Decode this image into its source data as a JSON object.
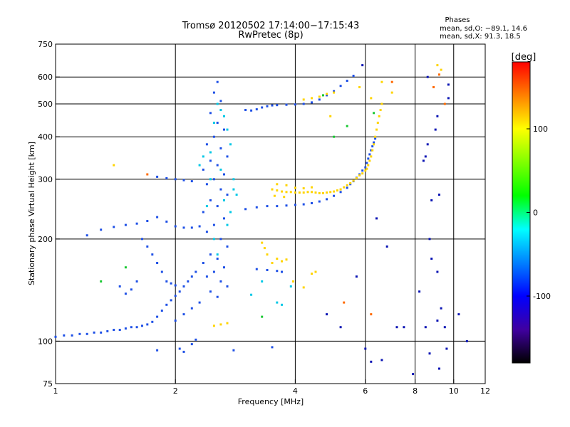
{
  "chart_data": {
    "type": "scatter",
    "title": "Tromsø 20120502 17:14:00−17:15:43",
    "subtitle": "RwPretec (8p)",
    "xlabel": "Frequency [MHz]",
    "ylabel": "Stationary phase Virtual Height [km]",
    "x_scale": "log",
    "y_scale": "log",
    "xlim": [
      1,
      12
    ],
    "ylim": [
      75,
      750
    ],
    "x_ticks": [
      1,
      2,
      4,
      6,
      8,
      10,
      12
    ],
    "y_ticks": [
      75,
      100,
      200,
      300,
      400,
      500,
      600,
      750
    ],
    "x_grid": [
      2,
      4,
      6,
      8,
      10
    ],
    "y_grid": [
      100,
      200,
      300,
      400,
      500,
      600
    ],
    "grid": true,
    "phase_stats": {
      "heading": "Phases",
      "line1": "mean, sd,O: −89.1, 14.6",
      "line2": "mean, sd,X:  91.3, 18.5"
    },
    "colorbar": {
      "label": "[deg]",
      "range": [
        -180,
        180
      ],
      "ticks": [
        100,
        0,
        -100
      ],
      "colors": [
        "#ff0000",
        "#ff8000",
        "#ffff00",
        "#80ff00",
        "#00ff00",
        "#00ffff",
        "#0080ff",
        "#0000ff",
        "#4000a0",
        "#000000"
      ]
    },
    "series": [
      {
        "points": [
          [
            1.0,
            103
          ],
          [
            1.05,
            104
          ],
          [
            1.1,
            104
          ],
          [
            1.15,
            105
          ],
          [
            1.2,
            105
          ],
          [
            1.25,
            106
          ],
          [
            1.3,
            106
          ],
          [
            1.35,
            107
          ],
          [
            1.4,
            108
          ],
          [
            1.45,
            108
          ],
          [
            1.5,
            109
          ],
          [
            1.55,
            110
          ],
          [
            1.6,
            110
          ],
          [
            1.65,
            111
          ],
          [
            1.7,
            112
          ],
          [
            1.75,
            114
          ],
          [
            1.8,
            118
          ],
          [
            1.85,
            123
          ],
          [
            1.9,
            128
          ],
          [
            1.95,
            132
          ],
          [
            2.0,
            136
          ],
          [
            2.05,
            140
          ],
          [
            2.1,
            145
          ],
          [
            2.15,
            150
          ],
          [
            2.2,
            155
          ],
          [
            2.25,
            160
          ],
          [
            1.2,
            205
          ],
          [
            1.3,
            213
          ],
          [
            1.4,
            217
          ],
          [
            1.5,
            220
          ],
          [
            1.6,
            222
          ],
          [
            1.7,
            226
          ],
          [
            1.8,
            232
          ],
          [
            1.9,
            225
          ],
          [
            2.0,
            218
          ],
          [
            2.1,
            216
          ],
          [
            2.2,
            216
          ],
          [
            2.3,
            218
          ],
          [
            3.0,
            245
          ],
          [
            3.2,
            248
          ],
          [
            3.4,
            250
          ],
          [
            3.6,
            250
          ],
          [
            3.8,
            251
          ],
          [
            4.0,
            252
          ],
          [
            4.2,
            253
          ],
          [
            4.4,
            255
          ],
          [
            4.6,
            258
          ],
          [
            4.8,
            262
          ],
          [
            5.0,
            268
          ],
          [
            5.2,
            275
          ],
          [
            5.4,
            283
          ],
          [
            5.5,
            290
          ],
          [
            5.6,
            296
          ],
          [
            5.7,
            303
          ],
          [
            5.8,
            310
          ],
          [
            5.9,
            318
          ],
          [
            6.0,
            325
          ],
          [
            6.05,
            335
          ],
          [
            6.1,
            345
          ],
          [
            6.15,
            355
          ],
          [
            6.2,
            365
          ],
          [
            6.25,
            375
          ],
          [
            6.3,
            385
          ],
          [
            6.35,
            395
          ],
          [
            3.0,
            480
          ],
          [
            3.1,
            478
          ],
          [
            3.2,
            482
          ],
          [
            3.3,
            488
          ],
          [
            3.4,
            492
          ],
          [
            3.5,
            495
          ],
          [
            3.6,
            496
          ],
          [
            3.8,
            497
          ],
          [
            4.0,
            498
          ],
          [
            4.2,
            500
          ],
          [
            4.4,
            505
          ],
          [
            4.6,
            515
          ],
          [
            4.8,
            530
          ],
          [
            5.0,
            545
          ],
          [
            5.2,
            565
          ],
          [
            5.4,
            585
          ],
          [
            5.6,
            605
          ],
          [
            2.55,
            580
          ],
          [
            2.5,
            540
          ],
          [
            2.6,
            510
          ],
          [
            2.45,
            470
          ],
          [
            2.55,
            440
          ],
          [
            2.65,
            420
          ],
          [
            2.5,
            400
          ],
          [
            2.4,
            380
          ],
          [
            2.6,
            370
          ],
          [
            2.7,
            350
          ],
          [
            2.45,
            340
          ],
          [
            2.55,
            330
          ],
          [
            2.35,
            320
          ],
          [
            2.65,
            310
          ],
          [
            2.5,
            300
          ],
          [
            2.4,
            290
          ],
          [
            2.6,
            280
          ],
          [
            2.7,
            270
          ],
          [
            2.45,
            260
          ],
          [
            2.55,
            250
          ],
          [
            2.35,
            240
          ],
          [
            2.65,
            230
          ],
          [
            2.5,
            220
          ],
          [
            2.4,
            210
          ],
          [
            2.6,
            200
          ],
          [
            2.7,
            190
          ],
          [
            2.45,
            180
          ],
          [
            2.55,
            175
          ],
          [
            2.35,
            170
          ],
          [
            2.65,
            165
          ],
          [
            2.5,
            160
          ],
          [
            2.4,
            155
          ],
          [
            2.6,
            150
          ],
          [
            2.7,
            145
          ],
          [
            2.45,
            140
          ],
          [
            2.55,
            135
          ],
          [
            2.3,
            130
          ],
          [
            2.2,
            125
          ],
          [
            2.1,
            120
          ],
          [
            2.0,
            115
          ],
          [
            2.0,
            300
          ],
          [
            2.1,
            298
          ],
          [
            2.2,
            296
          ],
          [
            1.9,
            302
          ],
          [
            1.8,
            305
          ],
          [
            1.65,
            200
          ],
          [
            1.7,
            190
          ],
          [
            1.75,
            180
          ],
          [
            1.8,
            170
          ],
          [
            1.85,
            160
          ],
          [
            1.9,
            150
          ],
          [
            1.95,
            148
          ],
          [
            2.0,
            146
          ],
          [
            1.45,
            145
          ],
          [
            1.5,
            138
          ],
          [
            1.55,
            142
          ],
          [
            1.6,
            150
          ],
          [
            3.2,
            163
          ],
          [
            3.4,
            162
          ],
          [
            3.6,
            161
          ],
          [
            3.7,
            160
          ],
          [
            2.05,
            95
          ],
          [
            2.1,
            93
          ],
          [
            2.2,
            98
          ],
          [
            2.25,
            101
          ],
          [
            2.8,
            94
          ],
          [
            1.8,
            94
          ],
          [
            3.5,
            96
          ]
        ]
      },
      {
        "points": [
          [
            3.5,
            280
          ],
          [
            3.6,
            278
          ],
          [
            3.7,
            276
          ],
          [
            3.8,
            275
          ],
          [
            3.9,
            275
          ],
          [
            4.0,
            274
          ],
          [
            4.1,
            274
          ],
          [
            4.2,
            274
          ],
          [
            4.3,
            275
          ],
          [
            4.4,
            275
          ],
          [
            4.5,
            274
          ],
          [
            4.6,
            273
          ],
          [
            4.7,
            273
          ],
          [
            4.8,
            274
          ],
          [
            4.9,
            275
          ],
          [
            5.0,
            276
          ],
          [
            5.1,
            278
          ],
          [
            5.2,
            280
          ],
          [
            5.3,
            284
          ],
          [
            5.4,
            288
          ],
          [
            5.5,
            292
          ],
          [
            5.6,
            297
          ],
          [
            5.7,
            302
          ],
          [
            5.8,
            308
          ],
          [
            5.9,
            312
          ],
          [
            6.0,
            318
          ],
          [
            6.05,
            322
          ],
          [
            6.1,
            330
          ],
          [
            6.15,
            340
          ],
          [
            6.2,
            350
          ],
          [
            6.25,
            365
          ],
          [
            6.3,
            380
          ],
          [
            6.35,
            400
          ],
          [
            6.4,
            420
          ],
          [
            6.45,
            440
          ],
          [
            6.5,
            460
          ],
          [
            6.55,
            480
          ],
          [
            6.6,
            500
          ],
          [
            3.6,
            290
          ],
          [
            3.8,
            288
          ],
          [
            4.0,
            283
          ],
          [
            4.2,
            282
          ],
          [
            4.4,
            284
          ],
          [
            3.55,
            268
          ],
          [
            3.75,
            266
          ],
          [
            4.2,
            515
          ],
          [
            4.4,
            520
          ],
          [
            4.6,
            525
          ],
          [
            4.8,
            535
          ],
          [
            5.0,
            540
          ],
          [
            3.6,
            175
          ],
          [
            3.7,
            172
          ],
          [
            3.8,
            174
          ],
          [
            3.5,
            170
          ],
          [
            3.3,
            195
          ],
          [
            3.35,
            188
          ],
          [
            3.4,
            180
          ],
          [
            2.6,
            112
          ],
          [
            2.7,
            113
          ],
          [
            2.5,
            111
          ],
          [
            4.5,
            160
          ],
          [
            4.4,
            158
          ],
          [
            3.95,
            150
          ],
          [
            4.2,
            144
          ],
          [
            6.6,
            580
          ],
          [
            6.2,
            520
          ],
          [
            5.8,
            560
          ],
          [
            7.0,
            540
          ],
          [
            9.1,
            650
          ],
          [
            9.3,
            630
          ],
          [
            1.4,
            330
          ],
          [
            4.9,
            460
          ]
        ]
      },
      {
        "points": [
          [
            1.5,
            165
          ],
          [
            3.3,
            118
          ],
          [
            4.7,
            530
          ],
          [
            5.0,
            400
          ],
          [
            1.3,
            150
          ],
          [
            6.3,
            470
          ],
          [
            5.4,
            430
          ]
        ]
      },
      {
        "points": [
          [
            2.4,
            250
          ],
          [
            2.45,
            300
          ],
          [
            2.5,
            200
          ],
          [
            2.55,
            180
          ],
          [
            2.6,
            320
          ],
          [
            2.65,
            260
          ],
          [
            2.7,
            220
          ],
          [
            2.75,
            240
          ],
          [
            2.8,
            280
          ],
          [
            2.85,
            270
          ],
          [
            2.55,
            500
          ],
          [
            2.6,
            480
          ],
          [
            2.65,
            460
          ],
          [
            2.7,
            420
          ],
          [
            2.5,
            440
          ],
          [
            2.75,
            380
          ],
          [
            2.45,
            360
          ],
          [
            2.35,
            350
          ],
          [
            2.3,
            330
          ],
          [
            2.8,
            300
          ],
          [
            3.9,
            145
          ],
          [
            3.3,
            150
          ],
          [
            3.1,
            137
          ],
          [
            3.6,
            130
          ],
          [
            3.7,
            128
          ]
        ]
      },
      {
        "points": [
          [
            6.0,
            95
          ],
          [
            6.6,
            88
          ],
          [
            7.9,
            80
          ],
          [
            8.7,
            92
          ],
          [
            9.2,
            83
          ],
          [
            9.6,
            95
          ],
          [
            9.1,
            115
          ],
          [
            9.5,
            110
          ],
          [
            8.5,
            110
          ],
          [
            7.5,
            110
          ],
          [
            8.2,
            140
          ],
          [
            9.3,
            125
          ],
          [
            9.1,
            160
          ],
          [
            8.8,
            260
          ],
          [
            9.2,
            270
          ],
          [
            8.8,
            175
          ],
          [
            9.0,
            420
          ],
          [
            9.1,
            460
          ],
          [
            8.6,
            600
          ],
          [
            9.7,
            570
          ],
          [
            10.8,
            100
          ],
          [
            10.3,
            120
          ],
          [
            9.7,
            520
          ],
          [
            8.4,
            340
          ],
          [
            8.6,
            380
          ],
          [
            4.8,
            120
          ],
          [
            5.2,
            110
          ],
          [
            6.2,
            87
          ],
          [
            6.8,
            190
          ],
          [
            6.4,
            230
          ],
          [
            7.2,
            110
          ],
          [
            8.5,
            350
          ],
          [
            8.7,
            200
          ],
          [
            5.7,
            155
          ],
          [
            5.9,
            650
          ]
        ]
      },
      {
        "points": [
          [
            7.0,
            580
          ],
          [
            6.2,
            120
          ],
          [
            8.9,
            560
          ],
          [
            9.5,
            500
          ],
          [
            9.2,
            610
          ],
          [
            5.3,
            130
          ],
          [
            1.7,
            310
          ]
        ]
      }
    ]
  },
  "series_colors": [
    "#1e50e6",
    "#ffd400",
    "#19c832",
    "#00c8e6",
    "#0a14b4",
    "#ff6a00"
  ]
}
